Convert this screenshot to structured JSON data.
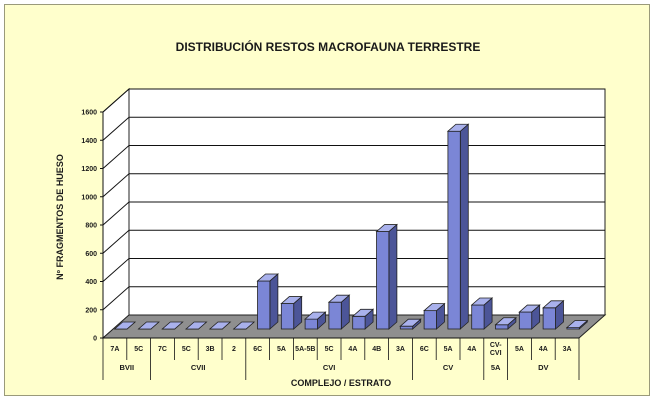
{
  "chart_data": {
    "type": "bar",
    "title": "DISTRIBUCIÓN RESTOS MACROFAUNA TERRESTRE",
    "ylabel": "Nº FRAGMENTOS DE HUESO",
    "xlabel": "COMPLEJO / ESTRATO",
    "ylim": [
      0,
      1600
    ],
    "yticks": [
      0,
      200,
      400,
      600,
      800,
      1000,
      1200,
      1400,
      1600
    ],
    "grid": true,
    "categories": [
      "7A",
      "5C",
      "7C",
      "5C",
      "3B",
      "2",
      "6C",
      "5A",
      "5A-5B",
      "5C",
      "4A",
      "4B",
      "3A",
      "6C",
      "5A",
      "4A",
      "CV-CVI",
      "5A",
      "4A",
      "3A"
    ],
    "values": [
      0,
      0,
      0,
      0,
      0,
      0,
      340,
      180,
      70,
      190,
      90,
      690,
      20,
      130,
      1400,
      170,
      30,
      120,
      150,
      10
    ],
    "groups": [
      {
        "label": "BVII",
        "count": 2
      },
      {
        "label": "CVII",
        "count": 4
      },
      {
        "label": "CVI",
        "count": 7
      },
      {
        "label": "CV",
        "count": 3
      },
      {
        "label": "5A",
        "count": 1
      },
      {
        "label": "DV",
        "count": 3
      }
    ],
    "colors": {
      "bar": "#7b86d6",
      "bar_top": "#a9b1ec",
      "bar_side": "#4c5598",
      "wall": "#ffffff",
      "floor": "#8f8f8f",
      "background": "#ffffcc"
    }
  }
}
